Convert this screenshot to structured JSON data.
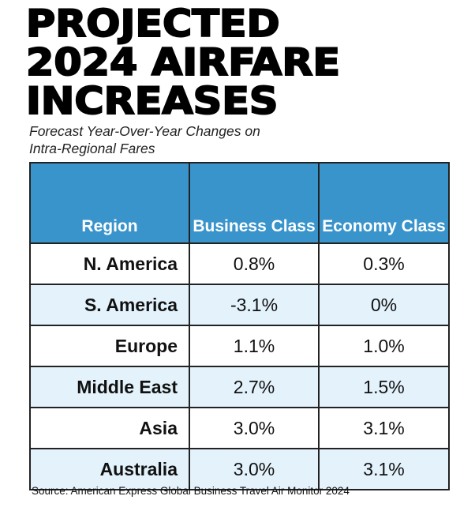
{
  "chart_data": {
    "type": "table",
    "title": "PROJECTED 2024 AIRFARE INCREASES",
    "subtitle": "Forecast Year-Over-Year Changes on Intra-Regional Fares",
    "subtitle_lines": [
      "Forecast Year-Over-Year Changes on",
      "Intra-Regional Fares"
    ],
    "title_lines": [
      "PROJECTED",
      "2024 AIRFARE",
      "INCREASES"
    ],
    "columns": [
      "Region",
      "Business Class",
      "Economy Class"
    ],
    "rows": [
      [
        "N. America",
        "0.8%",
        "0.3%"
      ],
      [
        "S. America",
        "-3.1%",
        "0%"
      ],
      [
        "Europe",
        "1.1%",
        "1.0%"
      ],
      [
        "Middle East",
        "2.7%",
        "1.5%"
      ],
      [
        "Asia",
        "3.0%",
        "3.1%"
      ],
      [
        "Australia",
        "3.0%",
        "3.1%"
      ]
    ],
    "source": "Source: American Express Global Business Travel Air Monitor 2024"
  },
  "colors": {
    "header": "#3a94cc",
    "alt_row": "#e3f2fb"
  }
}
